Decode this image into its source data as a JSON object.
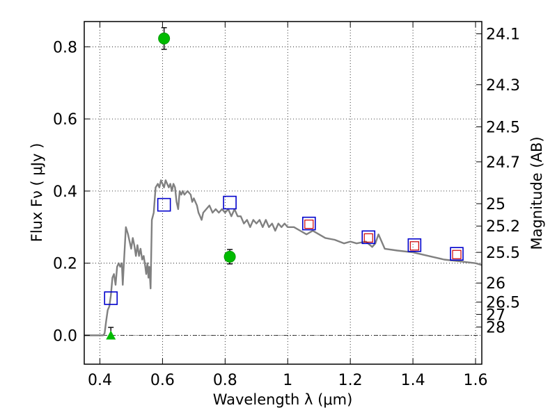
{
  "chart_data": {
    "type": "scatter",
    "title": "",
    "xlabel": "Wavelength  λ (μm)",
    "ylabel": "Flux  Fν  ( μJy )",
    "ylabel_right": "Magnitude (AB)",
    "xlim": [
      0.35,
      1.62
    ],
    "ylim": [
      -0.08,
      0.87
    ],
    "grid": true,
    "x_ticks": [
      0.4,
      0.6,
      0.8,
      1.0,
      1.2,
      1.4,
      1.6
    ],
    "x_tick_labels": [
      "0.4",
      "0.6",
      "0.8",
      "1",
      "1.2",
      "1.4",
      "1.6"
    ],
    "y_ticks": [
      0.0,
      0.2,
      0.4,
      0.6,
      0.8
    ],
    "y_tick_labels": [
      "0.0",
      "0.2",
      "0.4",
      "0.6",
      "0.8"
    ],
    "right_ticks": [
      {
        "label": "24.1",
        "flux": 0.836
      },
      {
        "label": "24.3",
        "flux": 0.695
      },
      {
        "label": "24.5",
        "flux": 0.578
      },
      {
        "label": "24.7",
        "flux": 0.481
      },
      {
        "label": "25",
        "flux": 0.365
      },
      {
        "label": "25.2",
        "flux": 0.303
      },
      {
        "label": "25.5",
        "flux": 0.23
      },
      {
        "label": "26",
        "flux": 0.145
      },
      {
        "label": "26.5",
        "flux": 0.092
      },
      {
        "label": "27",
        "flux": 0.058
      },
      {
        "label": "28",
        "flux": 0.023
      }
    ],
    "series": [
      {
        "type": "line",
        "color": "#808080",
        "points": [
          [
            0.35,
            0.0
          ],
          [
            0.41,
            0.0
          ],
          [
            0.415,
            0.005
          ],
          [
            0.42,
            0.04
          ],
          [
            0.425,
            0.07
          ],
          [
            0.43,
            0.08
          ],
          [
            0.435,
            0.11
          ],
          [
            0.44,
            0.16
          ],
          [
            0.445,
            0.17
          ],
          [
            0.45,
            0.14
          ],
          [
            0.455,
            0.19
          ],
          [
            0.46,
            0.2
          ],
          [
            0.465,
            0.19
          ],
          [
            0.47,
            0.2
          ],
          [
            0.473,
            0.14
          ],
          [
            0.478,
            0.22
          ],
          [
            0.483,
            0.3
          ],
          [
            0.49,
            0.28
          ],
          [
            0.5,
            0.24
          ],
          [
            0.505,
            0.27
          ],
          [
            0.51,
            0.25
          ],
          [
            0.515,
            0.22
          ],
          [
            0.52,
            0.25
          ],
          [
            0.525,
            0.22
          ],
          [
            0.53,
            0.24
          ],
          [
            0.535,
            0.21
          ],
          [
            0.54,
            0.22
          ],
          [
            0.545,
            0.19
          ],
          [
            0.548,
            0.17
          ],
          [
            0.552,
            0.2
          ],
          [
            0.555,
            0.16
          ],
          [
            0.558,
            0.19
          ],
          [
            0.562,
            0.13
          ],
          [
            0.566,
            0.32
          ],
          [
            0.572,
            0.34
          ],
          [
            0.578,
            0.41
          ],
          [
            0.585,
            0.42
          ],
          [
            0.59,
            0.41
          ],
          [
            0.595,
            0.43
          ],
          [
            0.6,
            0.42
          ],
          [
            0.605,
            0.41
          ],
          [
            0.61,
            0.43
          ],
          [
            0.615,
            0.42
          ],
          [
            0.62,
            0.41
          ],
          [
            0.625,
            0.42
          ],
          [
            0.63,
            0.4
          ],
          [
            0.635,
            0.42
          ],
          [
            0.64,
            0.41
          ],
          [
            0.645,
            0.37
          ],
          [
            0.65,
            0.35
          ],
          [
            0.655,
            0.4
          ],
          [
            0.66,
            0.39
          ],
          [
            0.665,
            0.4
          ],
          [
            0.67,
            0.39
          ],
          [
            0.68,
            0.4
          ],
          [
            0.69,
            0.39
          ],
          [
            0.695,
            0.37
          ],
          [
            0.7,
            0.38
          ],
          [
            0.705,
            0.37
          ],
          [
            0.71,
            0.36
          ],
          [
            0.715,
            0.34
          ],
          [
            0.72,
            0.33
          ],
          [
            0.725,
            0.32
          ],
          [
            0.73,
            0.34
          ],
          [
            0.74,
            0.35
          ],
          [
            0.75,
            0.36
          ],
          [
            0.76,
            0.34
          ],
          [
            0.77,
            0.35
          ],
          [
            0.78,
            0.34
          ],
          [
            0.79,
            0.35
          ],
          [
            0.8,
            0.34
          ],
          [
            0.81,
            0.35
          ],
          [
            0.82,
            0.33
          ],
          [
            0.83,
            0.35
          ],
          [
            0.84,
            0.33
          ],
          [
            0.85,
            0.33
          ],
          [
            0.86,
            0.31
          ],
          [
            0.87,
            0.32
          ],
          [
            0.88,
            0.3
          ],
          [
            0.89,
            0.32
          ],
          [
            0.9,
            0.31
          ],
          [
            0.91,
            0.32
          ],
          [
            0.92,
            0.3
          ],
          [
            0.93,
            0.32
          ],
          [
            0.94,
            0.3
          ],
          [
            0.95,
            0.31
          ],
          [
            0.96,
            0.29
          ],
          [
            0.97,
            0.31
          ],
          [
            0.98,
            0.3
          ],
          [
            0.99,
            0.31
          ],
          [
            1.0,
            0.3
          ],
          [
            1.02,
            0.3
          ],
          [
            1.04,
            0.29
          ],
          [
            1.06,
            0.28
          ],
          [
            1.08,
            0.29
          ],
          [
            1.1,
            0.28
          ],
          [
            1.12,
            0.27
          ],
          [
            1.15,
            0.265
          ],
          [
            1.18,
            0.255
          ],
          [
            1.2,
            0.26
          ],
          [
            1.22,
            0.255
          ],
          [
            1.25,
            0.26
          ],
          [
            1.27,
            0.245
          ],
          [
            1.28,
            0.255
          ],
          [
            1.29,
            0.28
          ],
          [
            1.31,
            0.24
          ],
          [
            1.35,
            0.235
          ],
          [
            1.4,
            0.23
          ],
          [
            1.45,
            0.22
          ],
          [
            1.5,
            0.21
          ],
          [
            1.55,
            0.205
          ],
          [
            1.6,
            0.2
          ],
          [
            1.62,
            0.195
          ]
        ]
      },
      {
        "type": "model-squares",
        "color": "#0000cc",
        "points": [
          [
            0.435,
            0.103
          ],
          [
            0.605,
            0.362
          ],
          [
            0.815,
            0.368
          ],
          [
            1.068,
            0.31
          ],
          [
            1.258,
            0.272
          ],
          [
            1.405,
            0.25
          ],
          [
            1.54,
            0.226
          ]
        ]
      },
      {
        "type": "observed-squares",
        "color": "#cc0000",
        "points": [
          [
            1.068,
            0.308
          ],
          [
            1.258,
            0.27
          ],
          [
            1.405,
            0.248
          ],
          [
            1.54,
            0.224
          ]
        ]
      },
      {
        "type": "detections",
        "color": "#00bb00",
        "points": [
          {
            "x": 0.605,
            "y": 0.823,
            "err": 0.03
          },
          {
            "x": 0.815,
            "y": 0.218,
            "err": 0.02
          }
        ]
      },
      {
        "type": "upper-limit",
        "color": "#00bb00",
        "points": [
          {
            "x": 0.435,
            "y": 0.0,
            "err": 0.022
          }
        ]
      }
    ]
  }
}
